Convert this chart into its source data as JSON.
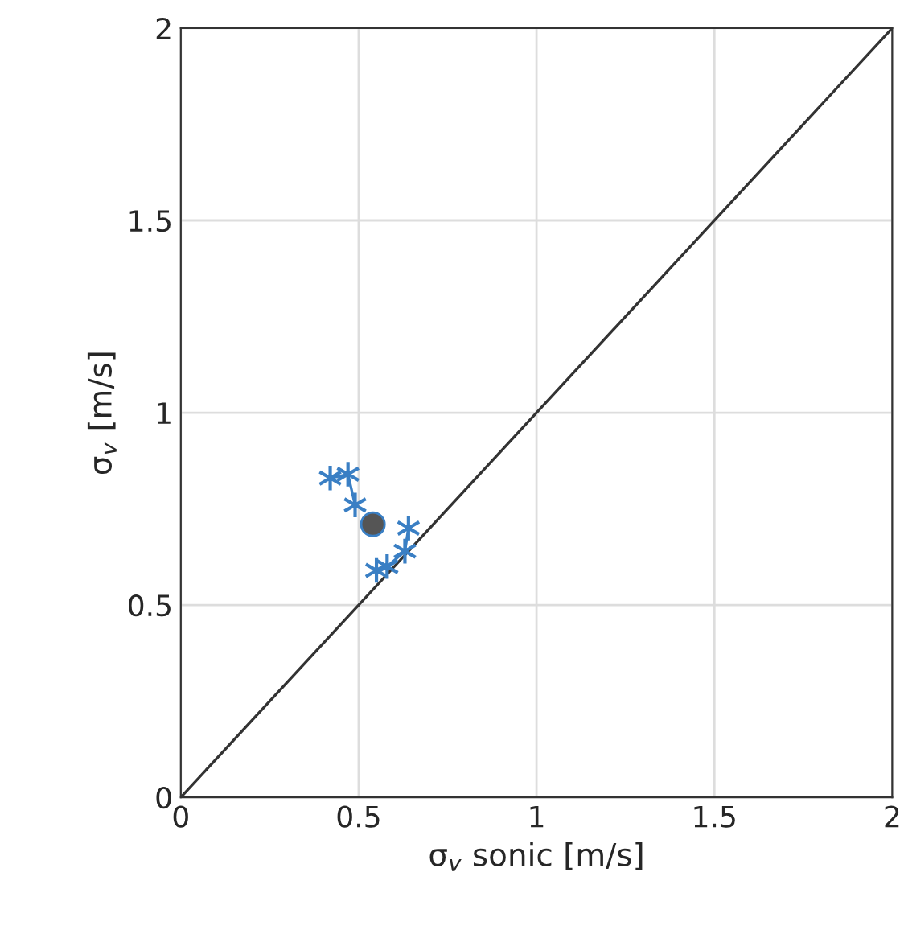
{
  "chart_data": {
    "type": "line",
    "xlabel": "σ$_{v}$ sonic [m/s]",
    "ylabel": "σ$_{v}$ [m/s]",
    "xlim": [
      0,
      2
    ],
    "ylim": [
      0,
      2
    ],
    "xticks": [
      0,
      0.5,
      1,
      1.5,
      2
    ],
    "yticks": [
      0,
      0.5,
      1,
      1.5,
      2
    ],
    "grid": true,
    "series": [
      {
        "type": "line",
        "color": "#333333",
        "marker": "none",
        "x": [
          0,
          2
        ],
        "values": [
          0,
          2
        ]
      },
      {
        "color": "#3a7fc4",
        "marker": "cross",
        "x": [
          0.42,
          0.47,
          0.49,
          0.52,
          0.55,
          0.58,
          0.63,
          0.64
        ],
        "values": [
          0.83,
          0.84,
          0.76,
          null,
          0.59,
          0.6,
          0.64,
          0.7
        ]
      },
      {
        "type": "scatter",
        "color": "#555555",
        "marker": "circle",
        "x": [
          0.54
        ],
        "values": [
          0.71
        ]
      }
    ]
  }
}
